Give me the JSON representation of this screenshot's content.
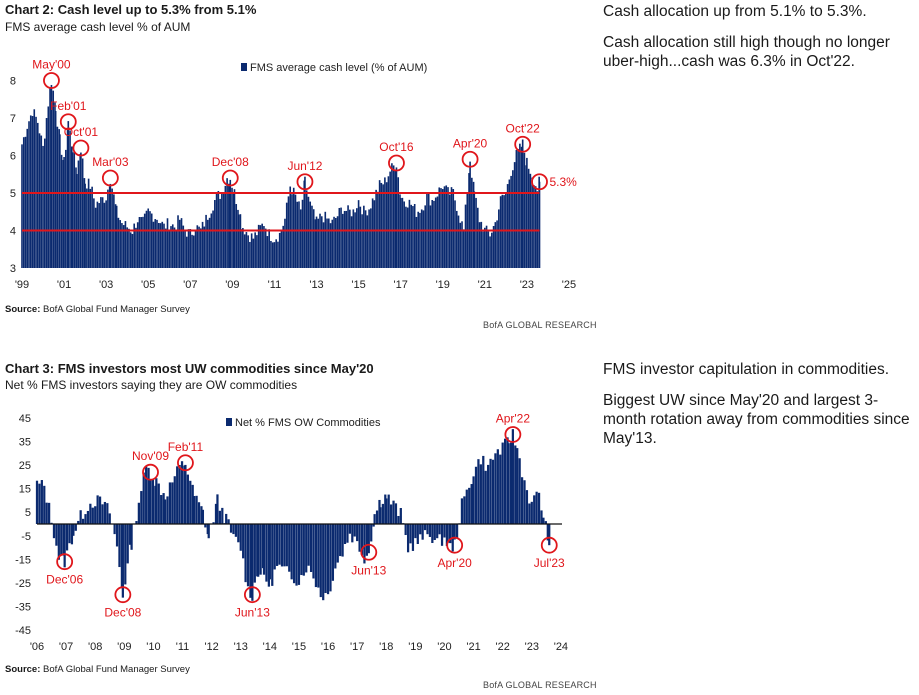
{
  "chart2": {
    "title": "Chart 2: Cash level up to 5.3% from 5.1%",
    "subtitle": "FMS average cash level % of AUM",
    "source_label": "Source:",
    "source_text": "BofA Global Fund Manager Survey",
    "brand": "BofA GLOBAL RESEARCH",
    "notes": [
      "Cash allocation up from 5.1% to 5.3%.",
      "Cash allocation still high though no longer uber-high...cash was 6.3% in Oct'22."
    ]
  },
  "chart3": {
    "title": "Chart 3: FMS investors most UW commodities since May'20",
    "subtitle": "Net % FMS investors saying they are OW commodities",
    "source_label": "Source:",
    "source_text": "BofA Global Fund Manager Survey",
    "brand": "BofA GLOBAL RESEARCH",
    "notes": [
      "FMS investor capitulation in commodities.",
      "Biggest UW since May'20 and largest 3-month rotation away from commodities since May'13."
    ]
  },
  "chart_data": [
    {
      "type": "bar",
      "title": "Chart 2: Cash level up to 5.3% from 5.1%",
      "subtitle": "FMS average cash level % of AUM",
      "series": [
        {
          "name": "FMS average cash level (% of AUM)"
        }
      ],
      "x_ticks": [
        "'99",
        "'01",
        "'03",
        "'05",
        "'07",
        "'09",
        "'11",
        "'13",
        "'15",
        "'17",
        "'19",
        "'21",
        "'23",
        "'25"
      ],
      "xlim": [
        1999,
        2026
      ],
      "ylim": [
        3,
        8.6
      ],
      "y_ticks": [
        3,
        4,
        5,
        6,
        7,
        8
      ],
      "reference_lines": [
        4,
        5
      ],
      "color": "#0b2a6f",
      "ref_color": "#e0161b",
      "points": [
        [
          1999.0,
          6.3
        ],
        [
          1999.25,
          6.8
        ],
        [
          1999.5,
          7.2
        ],
        [
          1999.75,
          6.9
        ],
        [
          2000.0,
          6.2
        ],
        [
          2000.25,
          7.4
        ],
        [
          2000.4,
          8.0
        ],
        [
          2000.6,
          7.3
        ],
        [
          2000.8,
          6.4
        ],
        [
          2001.0,
          5.8
        ],
        [
          2001.2,
          6.9
        ],
        [
          2001.4,
          6.2
        ],
        [
          2001.6,
          5.6
        ],
        [
          2001.8,
          6.2
        ],
        [
          2002.0,
          5.3
        ],
        [
          2002.25,
          5.2
        ],
        [
          2002.5,
          4.7
        ],
        [
          2002.75,
          4.8
        ],
        [
          2003.0,
          4.9
        ],
        [
          2003.2,
          5.4
        ],
        [
          2003.5,
          4.5
        ],
        [
          2003.75,
          4.2
        ],
        [
          2004.0,
          4.1
        ],
        [
          2004.25,
          4.0
        ],
        [
          2004.5,
          4.3
        ],
        [
          2004.75,
          4.2
        ],
        [
          2005.0,
          4.5
        ],
        [
          2005.25,
          4.4
        ],
        [
          2005.5,
          4.3
        ],
        [
          2005.75,
          4.1
        ],
        [
          2006.0,
          4.2
        ],
        [
          2006.25,
          4.1
        ],
        [
          2006.5,
          4.3
        ],
        [
          2006.75,
          4.0
        ],
        [
          2007.0,
          3.9
        ],
        [
          2007.25,
          4.1
        ],
        [
          2007.5,
          4.0
        ],
        [
          2007.75,
          4.3
        ],
        [
          2008.0,
          4.6
        ],
        [
          2008.25,
          4.9
        ],
        [
          2008.5,
          5.0
        ],
        [
          2008.75,
          5.4
        ],
        [
          2008.9,
          5.4
        ],
        [
          2009.1,
          5.0
        ],
        [
          2009.3,
          4.6
        ],
        [
          2009.5,
          4.1
        ],
        [
          2009.75,
          3.9
        ],
        [
          2010.0,
          3.8
        ],
        [
          2010.25,
          4.0
        ],
        [
          2010.5,
          4.2
        ],
        [
          2010.75,
          3.9
        ],
        [
          2011.0,
          3.8
        ],
        [
          2011.25,
          3.9
        ],
        [
          2011.5,
          4.3
        ],
        [
          2011.75,
          5.2
        ],
        [
          2012.0,
          4.9
        ],
        [
          2012.25,
          4.5
        ],
        [
          2012.45,
          5.3
        ],
        [
          2012.7,
          4.7
        ],
        [
          2013.0,
          4.2
        ],
        [
          2013.25,
          4.4
        ],
        [
          2013.5,
          4.3
        ],
        [
          2013.75,
          4.2
        ],
        [
          2014.0,
          4.4
        ],
        [
          2014.25,
          4.6
        ],
        [
          2014.5,
          4.5
        ],
        [
          2014.75,
          4.5
        ],
        [
          2015.0,
          4.8
        ],
        [
          2015.25,
          4.5
        ],
        [
          2015.5,
          4.6
        ],
        [
          2015.75,
          4.9
        ],
        [
          2016.0,
          5.2
        ],
        [
          2016.25,
          5.3
        ],
        [
          2016.5,
          5.6
        ],
        [
          2016.8,
          5.8
        ],
        [
          2017.0,
          4.9
        ],
        [
          2017.25,
          4.8
        ],
        [
          2017.5,
          4.7
        ],
        [
          2017.75,
          4.5
        ],
        [
          2018.0,
          4.6
        ],
        [
          2018.25,
          4.9
        ],
        [
          2018.5,
          4.8
        ],
        [
          2018.75,
          5.0
        ],
        [
          2019.0,
          5.2
        ],
        [
          2019.25,
          5.0
        ],
        [
          2019.5,
          5.0
        ],
        [
          2019.75,
          4.5
        ],
        [
          2020.0,
          4.0
        ],
        [
          2020.3,
          5.9
        ],
        [
          2020.5,
          5.0
        ],
        [
          2020.75,
          4.3
        ],
        [
          2021.0,
          4.0
        ],
        [
          2021.25,
          3.9
        ],
        [
          2021.5,
          4.2
        ],
        [
          2021.75,
          4.8
        ],
        [
          2022.0,
          5.0
        ],
        [
          2022.25,
          5.6
        ],
        [
          2022.5,
          6.0
        ],
        [
          2022.8,
          6.3
        ],
        [
          2023.0,
          5.8
        ],
        [
          2023.25,
          5.5
        ],
        [
          2023.5,
          5.1
        ],
        [
          2023.6,
          5.3
        ]
      ],
      "annotations": [
        {
          "label": "May'00",
          "x": 2000.4,
          "y": 8.0,
          "dir": "up"
        },
        {
          "label": "Feb'01",
          "x": 2001.2,
          "y": 6.9,
          "dir": "up"
        },
        {
          "label": "Oct'01",
          "x": 2001.8,
          "y": 6.2,
          "dir": "up"
        },
        {
          "label": "Mar'03",
          "x": 2003.2,
          "y": 5.4,
          "dir": "up"
        },
        {
          "label": "Dec'08",
          "x": 2008.9,
          "y": 5.4,
          "dir": "up"
        },
        {
          "label": "Jun'12",
          "x": 2012.45,
          "y": 5.3,
          "dir": "up"
        },
        {
          "label": "Oct'16",
          "x": 2016.8,
          "y": 5.8,
          "dir": "up"
        },
        {
          "label": "Apr'20",
          "x": 2020.3,
          "y": 5.9,
          "dir": "up"
        },
        {
          "label": "Oct'22",
          "x": 2022.8,
          "y": 6.3,
          "dir": "up"
        },
        {
          "label": "5.3%",
          "x": 2023.6,
          "y": 5.3,
          "dir": "right"
        }
      ]
    },
    {
      "type": "bar",
      "title": "Chart 3: FMS investors most UW commodities since May'20",
      "subtitle": "Net % FMS investors saying they are OW commodities",
      "series": [
        {
          "name": "Net % FMS OW Commodities"
        }
      ],
      "x_ticks": [
        "'06",
        "'07",
        "'08",
        "'09",
        "'10",
        "'11",
        "'12",
        "'13",
        "'14",
        "'15",
        "'16",
        "'17",
        "'18",
        "'19",
        "'20",
        "'21",
        "'22",
        "'23",
        "'24"
      ],
      "xlim": [
        2006,
        2025
      ],
      "ylim": [
        -45,
        45
      ],
      "y_ticks": [
        45,
        35,
        25,
        15,
        5,
        -5,
        -15,
        -25,
        -35,
        -45
      ],
      "color": "#0b2a6f",
      "ref_color": "#e0161b",
      "points": [
        [
          2006.0,
          17
        ],
        [
          2006.25,
          16
        ],
        [
          2006.5,
          2
        ],
        [
          2006.75,
          -14
        ],
        [
          2006.95,
          -16
        ],
        [
          2007.25,
          -4
        ],
        [
          2007.5,
          3
        ],
        [
          2007.75,
          8
        ],
        [
          2008.0,
          10
        ],
        [
          2008.25,
          9
        ],
        [
          2008.5,
          5
        ],
        [
          2008.75,
          -10
        ],
        [
          2008.95,
          -30
        ],
        [
          2009.25,
          -8
        ],
        [
          2009.5,
          10
        ],
        [
          2009.75,
          24
        ],
        [
          2009.9,
          22
        ],
        [
          2010.1,
          18
        ],
        [
          2010.4,
          12
        ],
        [
          2010.65,
          18
        ],
        [
          2010.9,
          24
        ],
        [
          2011.1,
          26
        ],
        [
          2011.4,
          12
        ],
        [
          2011.7,
          5
        ],
        [
          2011.9,
          -6
        ],
        [
          2012.2,
          10
        ],
        [
          2012.5,
          2
        ],
        [
          2012.75,
          -6
        ],
        [
          2013.0,
          -10
        ],
        [
          2013.25,
          -28
        ],
        [
          2013.4,
          -30
        ],
        [
          2013.6,
          -20
        ],
        [
          2013.8,
          -22
        ],
        [
          2014.0,
          -26
        ],
        [
          2014.25,
          -18
        ],
        [
          2014.5,
          -20
        ],
        [
          2014.75,
          -22
        ],
        [
          2015.0,
          -24
        ],
        [
          2015.25,
          -18
        ],
        [
          2015.5,
          -22
        ],
        [
          2015.75,
          -30
        ],
        [
          2016.0,
          -30
        ],
        [
          2016.25,
          -18
        ],
        [
          2016.5,
          -12
        ],
        [
          2016.75,
          -4
        ],
        [
          2017.0,
          -8
        ],
        [
          2017.25,
          -14
        ],
        [
          2017.4,
          -12
        ],
        [
          2017.6,
          4
        ],
        [
          2017.8,
          10
        ],
        [
          2018.0,
          12
        ],
        [
          2018.25,
          8
        ],
        [
          2018.5,
          4
        ],
        [
          2018.75,
          -10
        ],
        [
          2019.0,
          -8
        ],
        [
          2019.25,
          -6
        ],
        [
          2019.5,
          -4
        ],
        [
          2019.75,
          -8
        ],
        [
          2020.0,
          -6
        ],
        [
          2020.2,
          -10
        ],
        [
          2020.35,
          -9
        ],
        [
          2020.6,
          8
        ],
        [
          2020.85,
          16
        ],
        [
          2021.0,
          22
        ],
        [
          2021.25,
          28
        ],
        [
          2021.5,
          24
        ],
        [
          2021.75,
          30
        ],
        [
          2022.0,
          32
        ],
        [
          2022.2,
          35
        ],
        [
          2022.35,
          38
        ],
        [
          2022.5,
          32
        ],
        [
          2022.75,
          18
        ],
        [
          2023.0,
          8
        ],
        [
          2023.25,
          14
        ],
        [
          2023.4,
          2
        ],
        [
          2023.55,
          -4
        ],
        [
          2023.6,
          -9
        ]
      ],
      "annotations": [
        {
          "label": "Nov'09",
          "x": 2009.9,
          "y": 22,
          "dir": "up"
        },
        {
          "label": "Feb'11",
          "x": 2011.1,
          "y": 26,
          "dir": "up"
        },
        {
          "label": "Apr'22",
          "x": 2022.35,
          "y": 38,
          "dir": "up"
        },
        {
          "label": "Dec'06",
          "x": 2006.95,
          "y": -16,
          "dir": "down"
        },
        {
          "label": "Dec'08",
          "x": 2008.95,
          "y": -30,
          "dir": "down"
        },
        {
          "label": "Jun'13",
          "x": 2013.4,
          "y": -30,
          "dir": "down"
        },
        {
          "label": "Jun'13",
          "x": 2017.4,
          "y": -12,
          "dir": "down"
        },
        {
          "label": "Apr'20",
          "x": 2020.35,
          "y": -9,
          "dir": "down"
        },
        {
          "label": "Jul'23",
          "x": 2023.6,
          "y": -9,
          "dir": "down"
        }
      ]
    }
  ]
}
